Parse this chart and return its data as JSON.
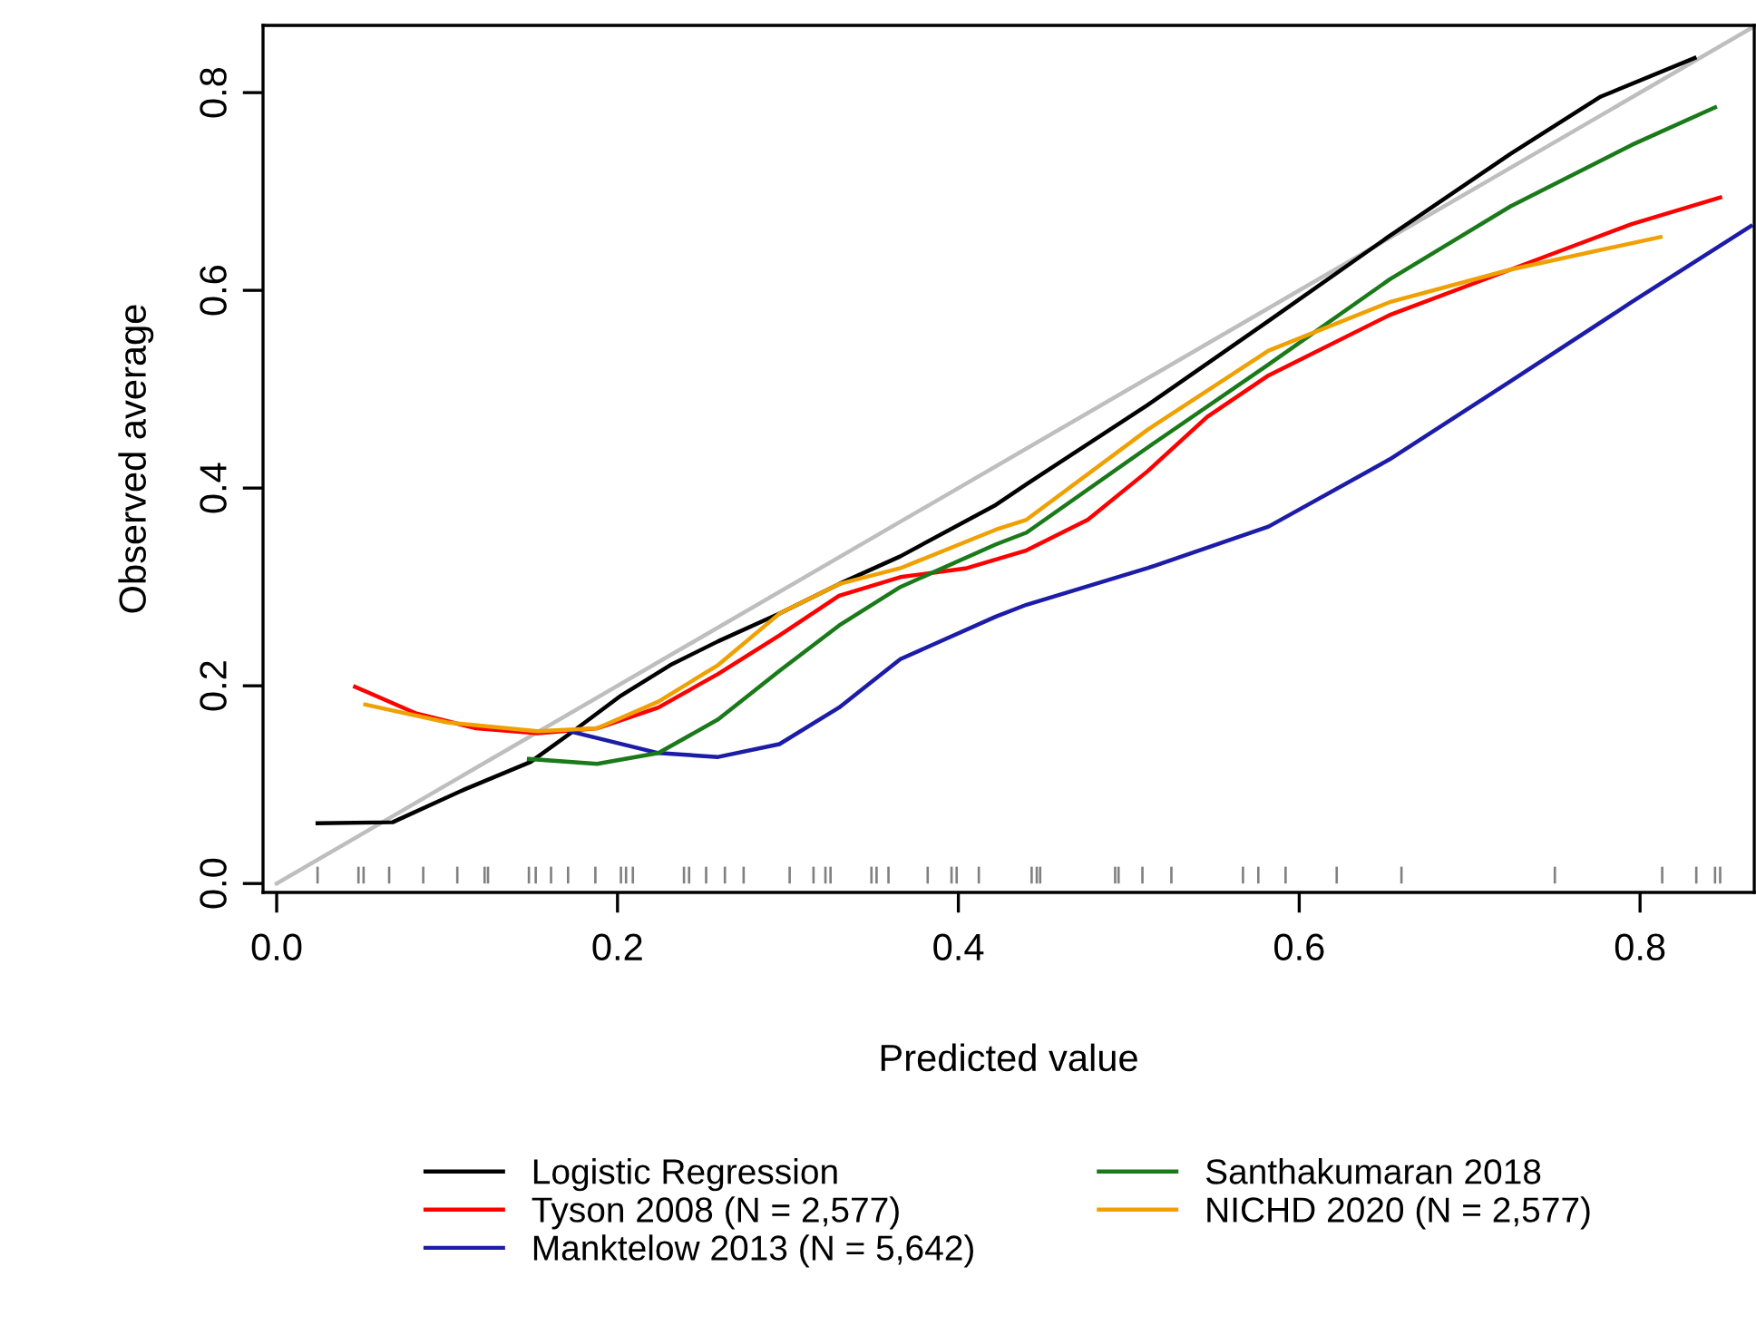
{
  "chart_data": {
    "type": "line",
    "xlabel": "Predicted value",
    "ylabel": "Observed average",
    "xlim": [
      -0.008,
      0.867
    ],
    "ylim": [
      -0.009,
      0.868
    ],
    "xticks": [
      {
        "value": 0,
        "label": "0.0"
      },
      0.2,
      0.4,
      0.6,
      0.8
    ],
    "yticks": [
      {
        "value": 0,
        "label": "0.0"
      },
      0.2,
      0.4,
      0.6,
      0.8
    ],
    "grid": false,
    "legend": "bottom",
    "line_style": "solid",
    "series": [
      {
        "type": "line",
        "color": "#bebebe",
        "x": [
          0.0,
          0.867
        ],
        "values": [
          0.0,
          0.867
        ]
      },
      {
        "type": "bar",
        "color": "#808080",
        "x": [
          0.024,
          0.048,
          0.051,
          0.066,
          0.086,
          0.106,
          0.122,
          0.124,
          0.148,
          0.152,
          0.161,
          0.171,
          0.187,
          0.202,
          0.205,
          0.209,
          0.239,
          0.242,
          0.252,
          0.263,
          0.274,
          0.301,
          0.315,
          0.322,
          0.325,
          0.349,
          0.352,
          0.359,
          0.382,
          0.396,
          0.399,
          0.412,
          0.443,
          0.446,
          0.448,
          0.492,
          0.494,
          0.508,
          0.525,
          0.567,
          0.576,
          0.592,
          0.622,
          0.66,
          0.75,
          0.813,
          0.833,
          0.844,
          0.847
        ],
        "values": [
          0.017,
          0.017,
          0.017,
          0.017,
          0.017,
          0.017,
          0.017,
          0.017,
          0.017,
          0.017,
          0.017,
          0.017,
          0.017,
          0.017,
          0.017,
          0.017,
          0.017,
          0.017,
          0.017,
          0.017,
          0.017,
          0.017,
          0.017,
          0.017,
          0.017,
          0.017,
          0.017,
          0.017,
          0.017,
          0.017,
          0.017,
          0.017,
          0.017,
          0.017,
          0.017,
          0.017,
          0.017,
          0.017,
          0.017,
          0.017,
          0.017,
          0.017,
          0.017,
          0.017,
          0.017,
          0.017,
          0.017,
          0.017,
          0.017
        ]
      },
      {
        "name": "Logistic Regression",
        "color": "#000000",
        "x": [
          0.024,
          0.068,
          0.11,
          0.149,
          0.174,
          0.202,
          0.231,
          0.259,
          0.295,
          0.33,
          0.366,
          0.422,
          0.44,
          0.511,
          0.582,
          0.653,
          0.724,
          0.777,
          0.832
        ],
        "values": [
          0.061,
          0.062,
          0.095,
          0.123,
          0.154,
          0.19,
          0.221,
          0.245,
          0.273,
          0.303,
          0.331,
          0.383,
          0.404,
          0.484,
          0.569,
          0.655,
          0.738,
          0.796,
          0.835
        ]
      },
      {
        "name": "Tyson 2008 (N = 2,577)",
        "color": "#ff0000",
        "x": [
          0.046,
          0.082,
          0.117,
          0.153,
          0.188,
          0.224,
          0.259,
          0.295,
          0.33,
          0.366,
          0.405,
          0.44,
          0.476,
          0.511,
          0.546,
          0.582,
          0.653,
          0.724,
          0.795,
          0.847
        ],
        "values": [
          0.199,
          0.172,
          0.157,
          0.152,
          0.157,
          0.178,
          0.212,
          0.251,
          0.291,
          0.31,
          0.319,
          0.337,
          0.368,
          0.417,
          0.472,
          0.514,
          0.575,
          0.621,
          0.667,
          0.694
        ]
      },
      {
        "name": "Manktelow 2013 (N = 5,642)",
        "color": "#1c1ca8",
        "x": [
          0.172,
          0.224,
          0.259,
          0.295,
          0.33,
          0.366,
          0.422,
          0.44,
          0.511,
          0.582,
          0.653,
          0.724,
          0.795,
          0.865
        ],
        "values": [
          0.154,
          0.132,
          0.128,
          0.141,
          0.178,
          0.227,
          0.27,
          0.282,
          0.319,
          0.361,
          0.429,
          0.508,
          0.588,
          0.665
        ]
      },
      {
        "name": "Santhakumaran 2018",
        "color": "#1a7a1a",
        "x": [
          0.148,
          0.188,
          0.224,
          0.259,
          0.295,
          0.33,
          0.366,
          0.422,
          0.44,
          0.511,
          0.582,
          0.653,
          0.724,
          0.795,
          0.844
        ],
        "values": [
          0.126,
          0.121,
          0.132,
          0.166,
          0.215,
          0.261,
          0.3,
          0.343,
          0.355,
          0.441,
          0.525,
          0.611,
          0.685,
          0.747,
          0.785
        ]
      },
      {
        "name": "NICHD 2020 (N = 2,577)",
        "color": "#f0a000",
        "x": [
          0.052,
          0.1,
          0.153,
          0.188,
          0.224,
          0.259,
          0.295,
          0.33,
          0.366,
          0.422,
          0.44,
          0.511,
          0.582,
          0.653,
          0.724,
          0.812
        ],
        "values": [
          0.181,
          0.163,
          0.154,
          0.157,
          0.184,
          0.221,
          0.273,
          0.303,
          0.319,
          0.358,
          0.368,
          0.459,
          0.539,
          0.588,
          0.621,
          0.654
        ]
      }
    ]
  }
}
